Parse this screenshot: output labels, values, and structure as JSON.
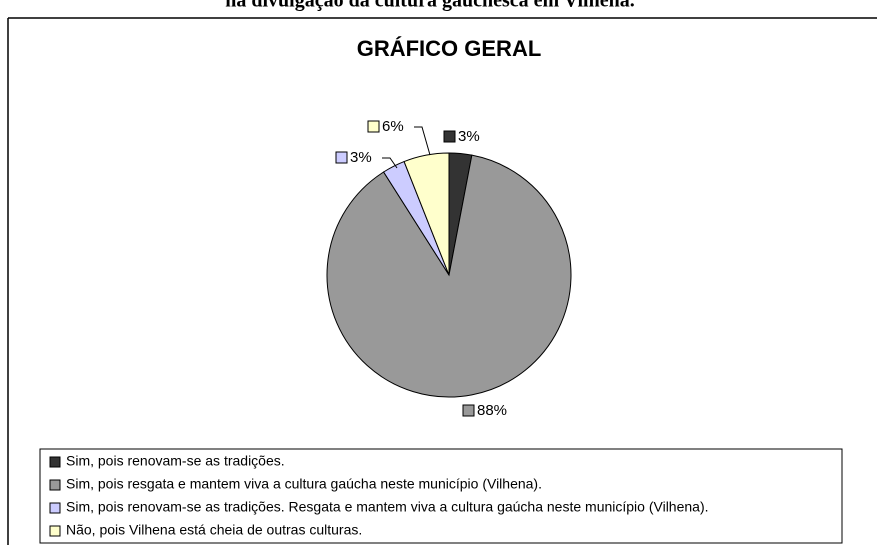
{
  "heading": "na divulgação da cultura gauchesca em Vilhena.",
  "chart_data": {
    "type": "pie",
    "title": "GRÁFICO GERAL",
    "categories": [
      "Sim, pois renovam-se as tradições.",
      "Sim, pois resgata e mantem viva a cultura gaúcha neste município (Vilhena).",
      "Sim, pois renovam-se as tradições. Resgata e mantem viva a cultura gaúcha neste município (Vilhena).",
      "Não, pois Vilhena está cheia de outras culturas."
    ],
    "values": [
      3,
      88,
      3,
      6
    ],
    "value_labels": [
      "3%",
      "88%",
      "3%",
      "6%"
    ],
    "colors": [
      "#333333",
      "#999999",
      "#ccccff",
      "#ffffcc"
    ],
    "legend": "bottom"
  }
}
